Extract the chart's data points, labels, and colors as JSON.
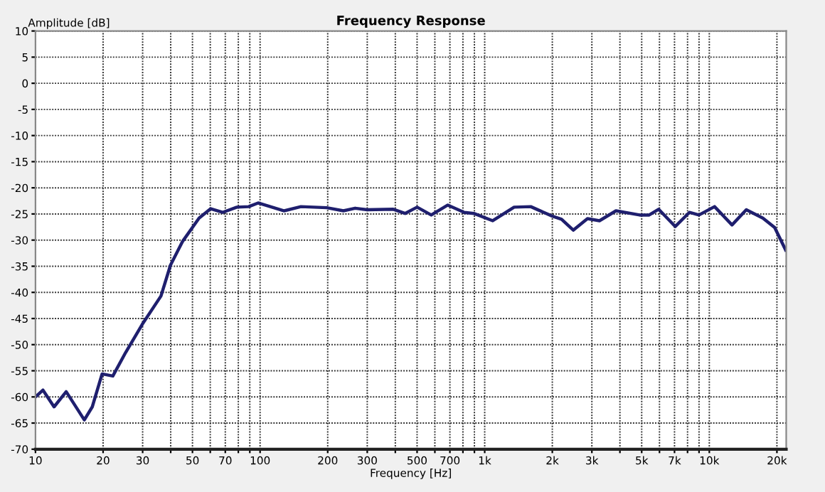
{
  "chart_data": {
    "type": "line",
    "title": "Frequency Response",
    "xlabel": "Frequency [Hz]",
    "ylabel": "Amplitude [dB]",
    "log": "x",
    "grid": true,
    "line_style": "solid",
    "marker": "none",
    "xlim": [
      10,
      22000
    ],
    "ylim": [
      -70,
      10
    ],
    "yticks": [
      -70,
      -65,
      -60,
      -55,
      -50,
      -45,
      -40,
      -35,
      -30,
      -25,
      -20,
      -15,
      -10,
      -5,
      0,
      5,
      10
    ],
    "xticks": [
      10,
      20,
      30,
      {
        "value": 40,
        "label": null
      },
      50,
      {
        "value": 60,
        "label": null
      },
      70,
      {
        "value": 80,
        "label": null
      },
      {
        "value": 90,
        "label": null
      },
      100,
      200,
      300,
      {
        "value": 400,
        "label": null
      },
      500,
      {
        "value": 600,
        "label": null
      },
      700,
      {
        "value": 800,
        "label": null
      },
      {
        "value": 900,
        "label": null
      },
      {
        "value": 1000,
        "label": "1k"
      },
      {
        "value": 2000,
        "label": "2k"
      },
      {
        "value": 3000,
        "label": "3k"
      },
      {
        "value": 4000,
        "label": null
      },
      {
        "value": 5000,
        "label": "5k"
      },
      {
        "value": 6000,
        "label": null
      },
      {
        "value": 7000,
        "label": "7k"
      },
      {
        "value": 8000,
        "label": null
      },
      {
        "value": 9000,
        "label": null
      },
      {
        "value": 10000,
        "label": "10k"
      },
      {
        "value": 20000,
        "label": "20k"
      }
    ],
    "series": [
      {
        "color": "#1f1f6e",
        "x": [
          10,
          10.8,
          12.1,
          13.7,
          16.5,
          17.9,
          19.8,
          22.1,
          25.2,
          29.9,
          36.2,
          39.9,
          45.1,
          53.5,
          60.3,
          68.1,
          78.8,
          89,
          98,
          128,
          152,
          198,
          235,
          265,
          300,
          392,
          442,
          500,
          578,
          685,
          811,
          894,
          1086,
          1352,
          1603,
          1995,
          2198,
          2479,
          2868,
          3243,
          3841,
          4897,
          5398,
          5946,
          7049,
          8153,
          8995,
          10550,
          12620,
          14610,
          17310,
          19540,
          21870
        ],
        "values": [
          -60,
          -58.7,
          -61.9,
          -59,
          -64.4,
          -61.9,
          -55.6,
          -56,
          -51.5,
          -46.1,
          -40.7,
          -34.8,
          -30.3,
          -25.8,
          -24,
          -24.7,
          -23.7,
          -23.6,
          -22.9,
          -24.4,
          -23.6,
          -23.8,
          -24.4,
          -23.9,
          -24.2,
          -24.1,
          -24.9,
          -23.7,
          -25.2,
          -23.3,
          -24.7,
          -24.9,
          -26.3,
          -23.7,
          -23.6,
          -25.4,
          -26,
          -28.1,
          -25.9,
          -26.3,
          -24.4,
          -25.2,
          -25.2,
          -24.1,
          -27.4,
          -24.7,
          -25.2,
          -23.6,
          -27.1,
          -24.2,
          -25.8,
          -27.6,
          -31.9
        ]
      }
    ]
  }
}
